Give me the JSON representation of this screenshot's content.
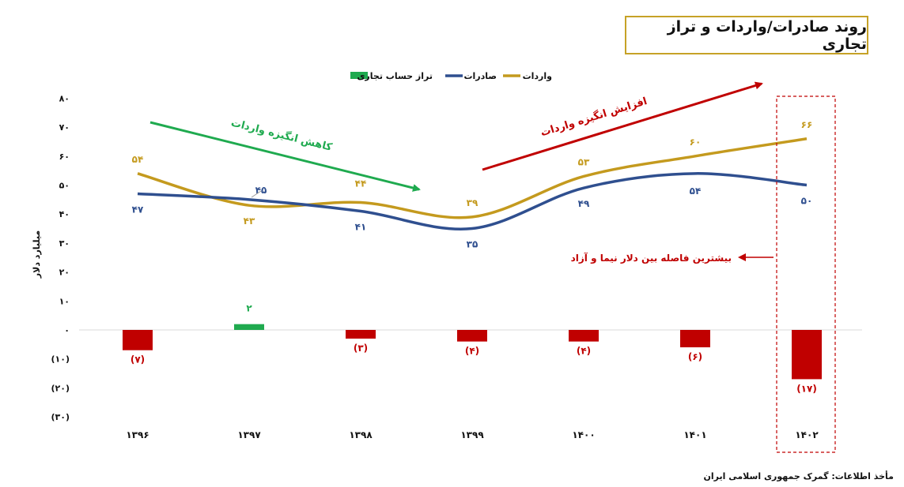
{
  "title": "روند صادرات/واردات و تراز تجاری",
  "source": "مأخذ اطلاعات: گمرک جمهوری اسلامی ایران",
  "colors": {
    "imports": "#c49a1e",
    "exports": "#2f4f8f",
    "balance_pos": "#1faa4f",
    "balance_neg": "#c00000",
    "green_arrow": "#1faa4f",
    "red_arrow": "#c00000"
  },
  "annotations": {
    "decrease": "کاهش انگیزه واردات",
    "increase": "افزایش انگیزه واردات",
    "gap": "بیشترین فاصله بین دلار نیما و آزاد"
  },
  "chart_data": {
    "type": "line",
    "categories": [
      "۱۳۹۶",
      "۱۳۹۷",
      "۱۳۹۸",
      "۱۳۹۹",
      "۱۴۰۰",
      "۱۴۰۱",
      "۱۴۰۲"
    ],
    "ylabel": "میلیارد دلار",
    "ylim": [
      -30,
      80
    ],
    "yticks": [
      80,
      70,
      60,
      50,
      40,
      30,
      20,
      10,
      0,
      -10,
      -20,
      -30
    ],
    "ytick_labels": [
      "۸۰",
      "۷۰",
      "۶۰",
      "۵۰",
      "۴۰",
      "۳۰",
      "۲۰",
      "۱۰",
      "۰",
      "(۱۰)",
      "(۲۰)",
      "(۳۰)"
    ],
    "legend_position": "top",
    "grid": false,
    "series": [
      {
        "name": "واردات",
        "type": "line",
        "values": [
          54,
          43,
          44,
          39,
          53,
          60,
          66
        ],
        "labels": [
          "۵۴",
          "۴۳",
          "۴۴",
          "۳۹",
          "۵۳",
          "۶۰",
          "۶۶"
        ]
      },
      {
        "name": "صادرات",
        "type": "line",
        "values": [
          47,
          45,
          41,
          35,
          49,
          54,
          50
        ],
        "labels": [
          "۴۷",
          "۴۵",
          "۴۱",
          "۳۵",
          "۴۹",
          "۵۴",
          "۵۰"
        ]
      },
      {
        "name": "تراز حساب تجاری",
        "type": "bar",
        "values": [
          -7,
          2,
          -3,
          -4,
          -4,
          -6,
          -17
        ],
        "labels": [
          "(۷)",
          "۲",
          "(۳)",
          "(۴)",
          "(۴)",
          "(۶)",
          "(۱۷)"
        ]
      }
    ]
  }
}
